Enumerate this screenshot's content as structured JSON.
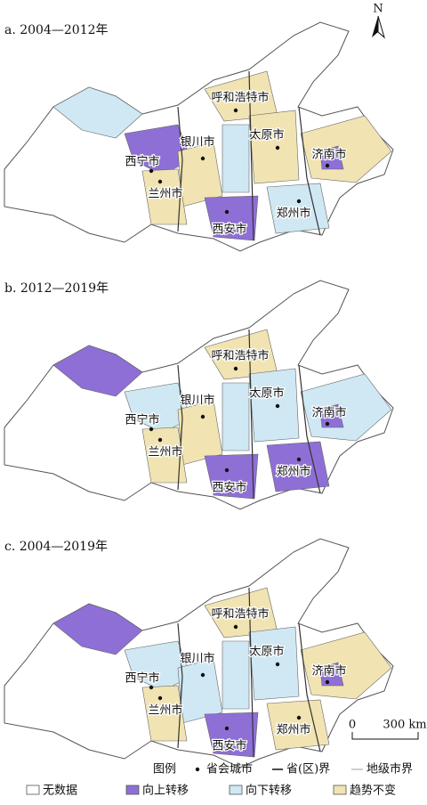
{
  "north": "N",
  "panels": [
    {
      "title": "a. 2004—2012年",
      "cities": [
        "呼和浩特市",
        "银川市",
        "太原市",
        "济南市",
        "西宁市",
        "兰州市",
        "郑州市",
        "西安市"
      ]
    },
    {
      "title": "b. 2012—2019年",
      "cities": [
        "呼和浩特市",
        "银川市",
        "太原市",
        "济南市",
        "西宁市",
        "兰州市",
        "郑州市",
        "西安市"
      ]
    },
    {
      "title": "c. 2004—2019年",
      "cities": [
        "呼和浩特市",
        "银川市",
        "太原市",
        "济南市",
        "西宁市",
        "兰州市",
        "郑州市",
        "西安市"
      ]
    }
  ],
  "scale_bar": {
    "zero": "0",
    "label": "300 km"
  },
  "legend": {
    "title": "图例",
    "items": [
      "省会城市",
      "省(区)界",
      "地级市界",
      "无数据",
      "向上转移",
      "向下转移",
      "趋势不变"
    ]
  }
}
